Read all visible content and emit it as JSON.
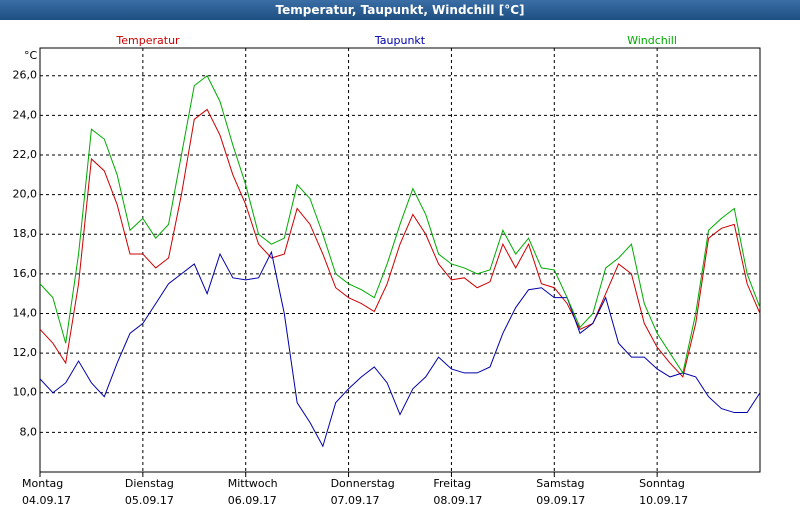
{
  "chart_data": {
    "type": "line",
    "title": "Temperatur, Taupunkt, Windchill [°C]",
    "y_label": "°C",
    "x": [
      0,
      3,
      6,
      9,
      12,
      15,
      18,
      21,
      24,
      27,
      30,
      33,
      36,
      39,
      42,
      45,
      48,
      51,
      54,
      57,
      60,
      63,
      66,
      69,
      72,
      75,
      78,
      81,
      84,
      87,
      90,
      93,
      96,
      99,
      102,
      105,
      108,
      111,
      114,
      117,
      120,
      123,
      126,
      129,
      132,
      135,
      138,
      141,
      144,
      147,
      150,
      153,
      156,
      159,
      162,
      165,
      168
    ],
    "xlim": [
      0,
      168
    ],
    "xticks": [
      {
        "value": 0,
        "label": "Montag",
        "date": "04.09.17"
      },
      {
        "value": 24,
        "label": "Dienstag",
        "date": "05.09.17"
      },
      {
        "value": 48,
        "label": "Mittwoch",
        "date": "06.09.17"
      },
      {
        "value": 72,
        "label": "Donnerstag",
        "date": "07.09.17"
      },
      {
        "value": 96,
        "label": "Freitag",
        "date": "08.09.17"
      },
      {
        "value": 120,
        "label": "Samstag",
        "date": "09.09.17"
      },
      {
        "value": 144,
        "label": "Sonntag",
        "date": "10.09.17"
      }
    ],
    "ylim": [
      6,
      27.4
    ],
    "yticks": [
      {
        "value": 8,
        "label": "8,0"
      },
      {
        "value": 10,
        "label": "10,0"
      },
      {
        "value": 12,
        "label": "12,0"
      },
      {
        "value": 14,
        "label": "14,0"
      },
      {
        "value": 16,
        "label": "16,0"
      },
      {
        "value": 18,
        "label": "18,0"
      },
      {
        "value": 20,
        "label": "20,0"
      },
      {
        "value": 22,
        "label": "22,0"
      },
      {
        "value": 24,
        "label": "24,0"
      },
      {
        "value": 26,
        "label": "26,0"
      }
    ],
    "grid": true,
    "series": [
      {
        "name": "Temperatur",
        "color": "#cc0000",
        "values": [
          13.2,
          12.5,
          11.5,
          15.5,
          21.8,
          21.2,
          19.5,
          17.0,
          17.0,
          16.3,
          16.8,
          20.0,
          23.8,
          24.3,
          23.0,
          21.0,
          19.5,
          17.5,
          16.8,
          17.0,
          19.3,
          18.5,
          17.0,
          15.3,
          14.8,
          14.5,
          14.1,
          15.5,
          17.5,
          19.0,
          18.0,
          16.5,
          15.7,
          15.8,
          15.3,
          15.6,
          17.5,
          16.3,
          17.5,
          15.5,
          15.3,
          14.5,
          13.2,
          13.5,
          15.0,
          16.5,
          16.0,
          13.5,
          12.3,
          11.5,
          10.8,
          13.5,
          17.8,
          18.3,
          18.5,
          15.5,
          14.0
        ]
      },
      {
        "name": "Taupunkt",
        "color": "#0000aa",
        "values": [
          10.7,
          10.0,
          10.5,
          11.6,
          10.5,
          9.8,
          11.5,
          13.0,
          13.5,
          14.5,
          15.5,
          16.0,
          16.5,
          15.0,
          17.0,
          15.8,
          15.7,
          15.8,
          17.1,
          14.0,
          9.5,
          8.5,
          7.3,
          9.5,
          10.2,
          10.8,
          11.3,
          10.5,
          8.9,
          10.2,
          10.8,
          11.8,
          11.2,
          11.0,
          11.0,
          11.3,
          13.0,
          14.3,
          15.2,
          15.3,
          14.8,
          14.8,
          13.0,
          13.5,
          14.8,
          12.5,
          11.8,
          11.8,
          11.2,
          10.8,
          11.0,
          10.8,
          9.8,
          9.2,
          9.0,
          9.0,
          10.0
        ]
      },
      {
        "name": "Windchill",
        "color": "#00aa00",
        "values": [
          15.5,
          14.8,
          12.5,
          17.0,
          23.3,
          22.8,
          21.0,
          18.2,
          18.8,
          17.8,
          18.5,
          22.0,
          25.5,
          26.0,
          24.7,
          22.5,
          20.5,
          18.0,
          17.5,
          17.8,
          20.5,
          19.8,
          18.0,
          16.0,
          15.5,
          15.2,
          14.8,
          16.5,
          18.5,
          20.3,
          19.0,
          17.0,
          16.5,
          16.3,
          16.0,
          16.2,
          18.2,
          17.0,
          17.8,
          16.3,
          16.2,
          14.8,
          13.3,
          14.0,
          16.3,
          16.8,
          17.5,
          14.5,
          13.0,
          12.0,
          11.0,
          14.0,
          18.2,
          18.8,
          19.3,
          16.0,
          14.3
        ]
      }
    ]
  }
}
